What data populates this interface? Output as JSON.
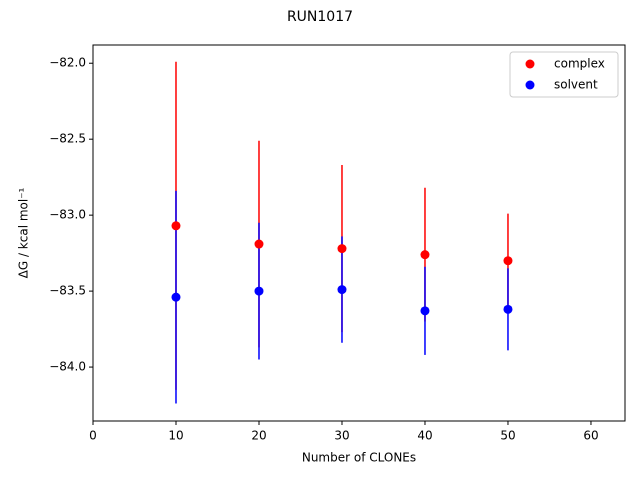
{
  "chart_data": {
    "type": "errorbar-scatter",
    "title": "RUN1017",
    "x_label": "Number of CLONEs",
    "y_label": "ΔG / kcal mol⁻¹",
    "x": [
      10,
      20,
      30,
      40,
      50
    ],
    "series": [
      {
        "name": "complex",
        "color": "#ff0000",
        "values": [
          -83.07,
          -83.19,
          -83.22,
          -83.26,
          -83.3
        ],
        "errors": [
          1.08,
          0.68,
          0.55,
          0.44,
          0.31
        ]
      },
      {
        "name": "solvent",
        "color": "#0000ff",
        "values": [
          -83.54,
          -83.5,
          -83.49,
          -83.63,
          -83.62
        ],
        "errors": [
          0.7,
          0.45,
          0.35,
          0.29,
          0.27
        ]
      }
    ],
    "xlim": [
      0,
      64.1
    ],
    "xticks": [
      0,
      10,
      20,
      30,
      40,
      50,
      60
    ],
    "ylim": [
      -84.355,
      -81.88
    ],
    "yticks": [
      {
        "value": -84.0,
        "label": "−84.0"
      },
      {
        "value": -83.5,
        "label": "−83.5"
      },
      {
        "value": -83.0,
        "label": "−83.0"
      },
      {
        "value": -82.5,
        "label": "−82.5"
      },
      {
        "value": -82.0,
        "label": "−82.0"
      }
    ],
    "legend": "upper right",
    "grid": false
  }
}
